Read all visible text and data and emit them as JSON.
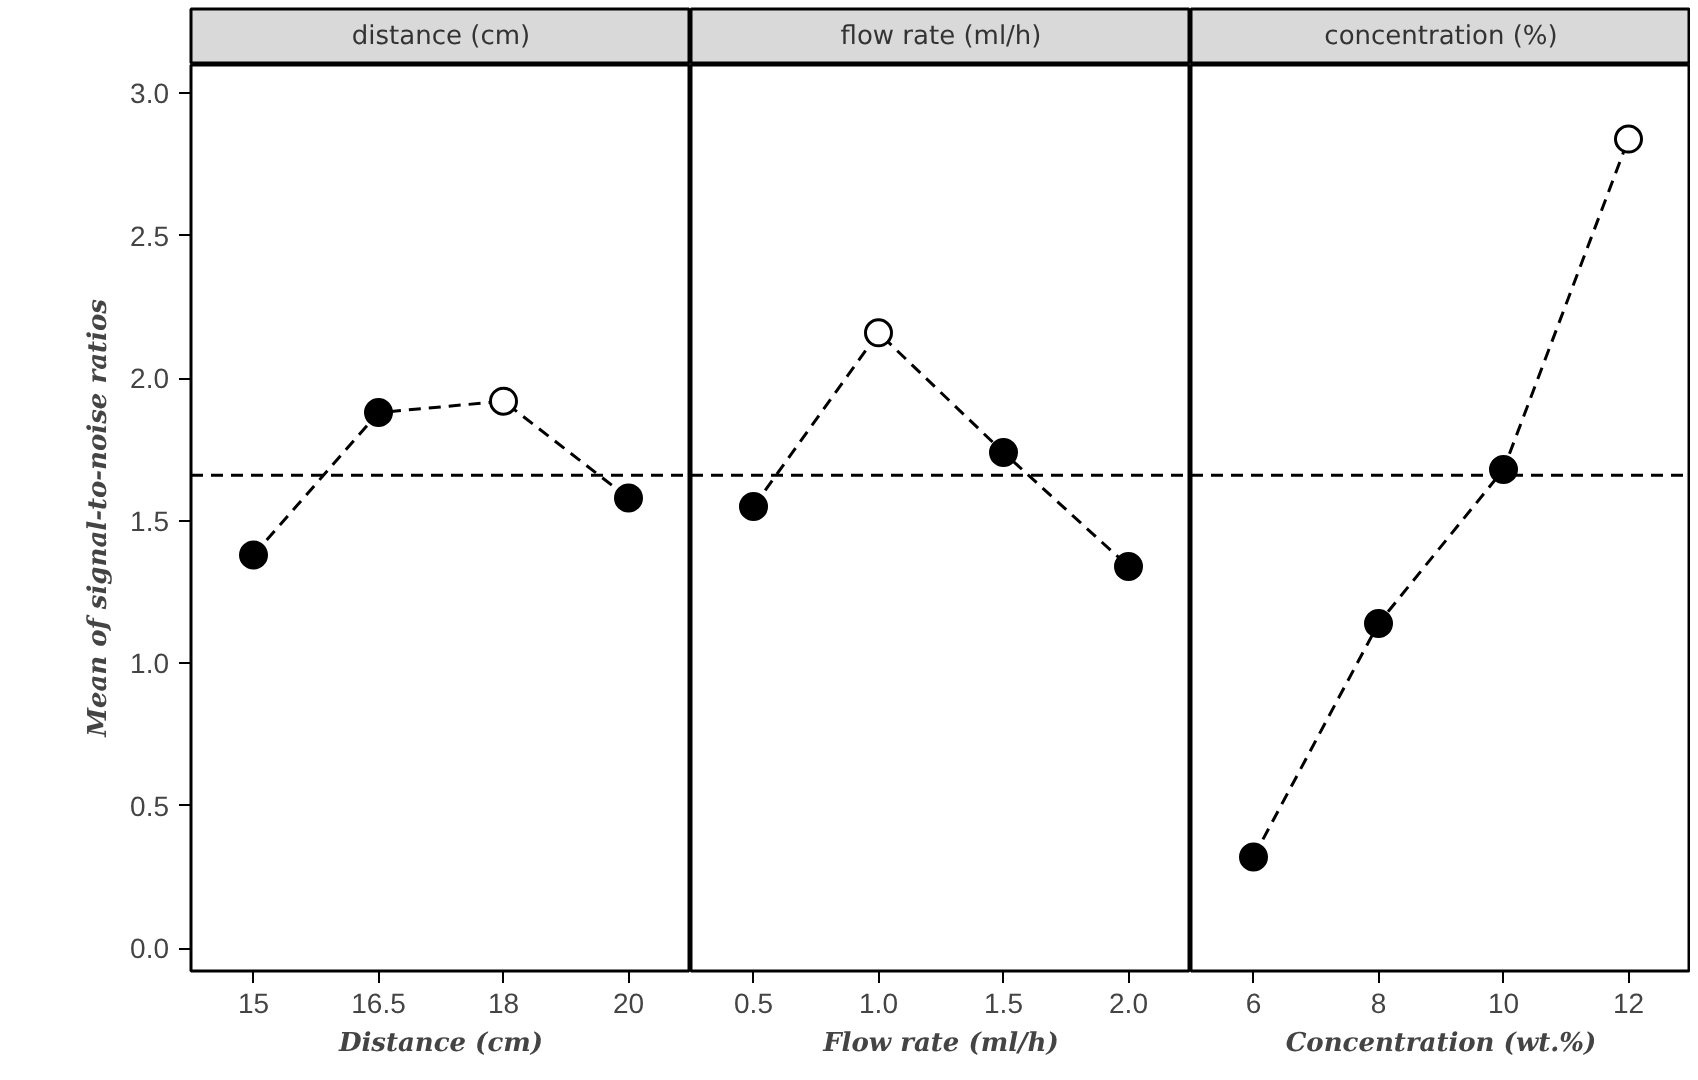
{
  "chart_data": [
    {
      "type": "line",
      "title": "distance (cm)",
      "xlabel": "Distance (cm)",
      "ylabel": "Mean of signal-to-noise ratios",
      "categories": [
        "15",
        "16.5",
        "18",
        "20"
      ],
      "series": [
        {
          "color": "#000000",
          "values": [
            1.38,
            1.88,
            1.92,
            1.58
          ],
          "colors": [
            "#000000",
            "#000000",
            "#ffffff",
            "#000000"
          ]
        }
      ],
      "ylim": [
        -0.08,
        3.1
      ],
      "yticks": [
        {
          "value": 0,
          "label": "0.0"
        },
        {
          "value": 0.5,
          "label": "0.5"
        },
        {
          "value": 1,
          "label": "1.0"
        },
        {
          "value": 1.5,
          "label": "1.5"
        },
        {
          "value": 2,
          "label": "2.0"
        },
        {
          "value": 2.5,
          "label": "2.5"
        },
        {
          "value": 3,
          "label": "3.0"
        }
      ],
      "ref_lines": [
        {
          "axis": "y",
          "value": 1.66,
          "label": null,
          "line_style": "dashed"
        }
      ],
      "marker": "circle",
      "line_style": "dashed",
      "grid": false
    },
    {
      "type": "line",
      "title": "flow rate (ml/h)",
      "xlabel": "Flow rate (ml/h)",
      "categories": [
        "0.5",
        "1.0",
        "1.5",
        "2.0"
      ],
      "series": [
        {
          "color": "#000000",
          "values": [
            1.55,
            2.16,
            1.74,
            1.34
          ],
          "colors": [
            "#000000",
            "#ffffff",
            "#000000",
            "#000000"
          ]
        }
      ],
      "ylim": [
        -0.08,
        3.1
      ],
      "tick_labels": "x",
      "ref_lines": [
        {
          "axis": "y",
          "value": 1.66,
          "label": null,
          "line_style": "dashed"
        }
      ],
      "marker": "circle",
      "line_style": "dashed",
      "grid": false
    },
    {
      "type": "line",
      "title": "concentration (%)",
      "xlabel": "Concentration (wt.%)",
      "categories": [
        "6",
        "8",
        "10",
        "12"
      ],
      "series": [
        {
          "color": "#000000",
          "values": [
            0.32,
            1.14,
            1.68,
            2.84
          ],
          "colors": [
            "#000000",
            "#000000",
            "#000000",
            "#ffffff"
          ]
        }
      ],
      "ylim": [
        -0.08,
        3.1
      ],
      "tick_labels": "x",
      "ref_lines": [
        {
          "axis": "y",
          "value": 1.66,
          "label": null,
          "line_style": "dashed"
        }
      ],
      "marker": "circle",
      "line_style": "dashed",
      "grid": false
    }
  ]
}
